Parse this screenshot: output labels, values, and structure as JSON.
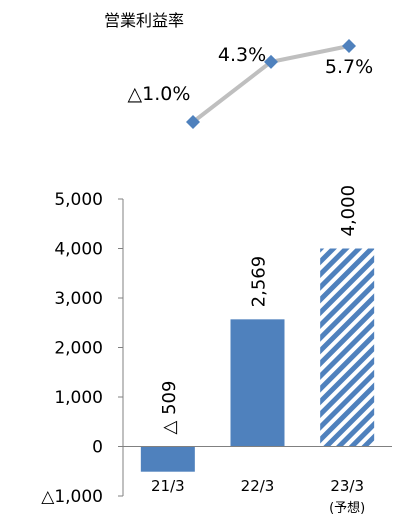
{
  "chart_data": [
    {
      "type": "line",
      "title": "営業利益率",
      "x": [
        "21/3",
        "22/3",
        "23/3"
      ],
      "values": [
        -1.0,
        4.3,
        5.7
      ],
      "point_labels": [
        "△1.0%",
        "4.3%",
        "5.7%"
      ],
      "colors": {
        "line": "#bfbfbf",
        "marker": "#4f81bd"
      }
    },
    {
      "type": "bar",
      "categories": [
        "21/3",
        "22/3",
        "23/3"
      ],
      "category_notes": [
        "",
        "",
        "(予想)"
      ],
      "values": [
        -509,
        2569,
        4000
      ],
      "data_labels": [
        "△ 509",
        "2,569",
        "4,000"
      ],
      "forecast": [
        false,
        false,
        true
      ],
      "ylim": [
        -1000,
        5000
      ],
      "yticks": [
        5000,
        4000,
        3000,
        2000,
        1000,
        0,
        -1000
      ],
      "ytick_labels": [
        "5,000",
        "4,000",
        "3,000",
        "2,000",
        "1,000",
        "0",
        "△1,000"
      ],
      "colors": {
        "bar": "#4f81bd",
        "hatch": "#ffffff",
        "axis": "#808080"
      }
    }
  ]
}
